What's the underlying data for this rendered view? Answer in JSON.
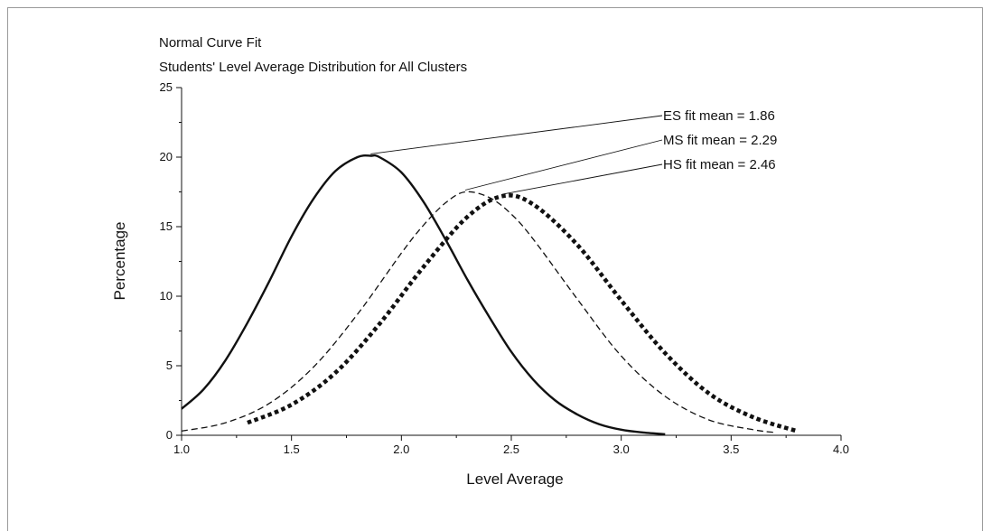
{
  "chart_data": {
    "type": "line",
    "title": "Normal Curve Fit",
    "subtitle": "Students' Level Average Distribution for All Clusters",
    "xlabel": "Level Average",
    "ylabel": "Percentage",
    "xlim": [
      1.0,
      4.0
    ],
    "ylim": [
      0,
      25
    ],
    "x_ticks": [
      "1.0",
      "1.5",
      "2.0",
      "2.5",
      "3.0",
      "3.5",
      "4.0"
    ],
    "y_ticks": [
      "0",
      "5",
      "10",
      "15",
      "20",
      "25"
    ],
    "grid": false,
    "series": [
      {
        "name": "ES fit mean = 1.86",
        "label": "ES fit mean = 1.86",
        "mean": 1.86,
        "style": "solid",
        "x": [
          1.0,
          1.1,
          1.2,
          1.3,
          1.4,
          1.5,
          1.6,
          1.7,
          1.8,
          1.86,
          1.9,
          2.0,
          2.1,
          2.2,
          2.3,
          2.4,
          2.5,
          2.6,
          2.7,
          2.8,
          2.9,
          3.0,
          3.1,
          3.2
        ],
        "y": [
          1.9,
          3.3,
          5.4,
          8.1,
          11.1,
          14.3,
          17.0,
          19.0,
          20.0,
          20.1,
          20.0,
          18.9,
          16.8,
          14.1,
          11.2,
          8.5,
          6.0,
          4.0,
          2.5,
          1.5,
          0.8,
          0.4,
          0.2,
          0.08
        ]
      },
      {
        "name": "MS fit mean = 2.29",
        "label": "MS fit mean = 2.29",
        "mean": 2.29,
        "style": "dashed",
        "x": [
          1.0,
          1.2,
          1.4,
          1.6,
          1.8,
          2.0,
          2.1,
          2.2,
          2.29,
          2.4,
          2.5,
          2.6,
          2.8,
          3.0,
          3.2,
          3.4,
          3.6,
          3.7
        ],
        "y": [
          0.3,
          0.9,
          2.3,
          4.9,
          8.7,
          13.1,
          15.1,
          16.7,
          17.5,
          17.1,
          15.9,
          14.1,
          9.8,
          5.7,
          2.8,
          1.1,
          0.4,
          0.2
        ]
      },
      {
        "name": "HS fit mean = 2.46",
        "label": "HS fit mean = 2.46",
        "mean": 2.46,
        "style": "dotted-bold",
        "x": [
          1.3,
          1.5,
          1.7,
          1.9,
          2.1,
          2.3,
          2.46,
          2.6,
          2.8,
          3.0,
          3.2,
          3.4,
          3.6,
          3.8
        ],
        "y": [
          0.9,
          2.2,
          4.5,
          8.0,
          12.1,
          15.7,
          17.2,
          16.6,
          13.7,
          9.7,
          5.9,
          3.0,
          1.3,
          0.3
        ]
      }
    ]
  }
}
